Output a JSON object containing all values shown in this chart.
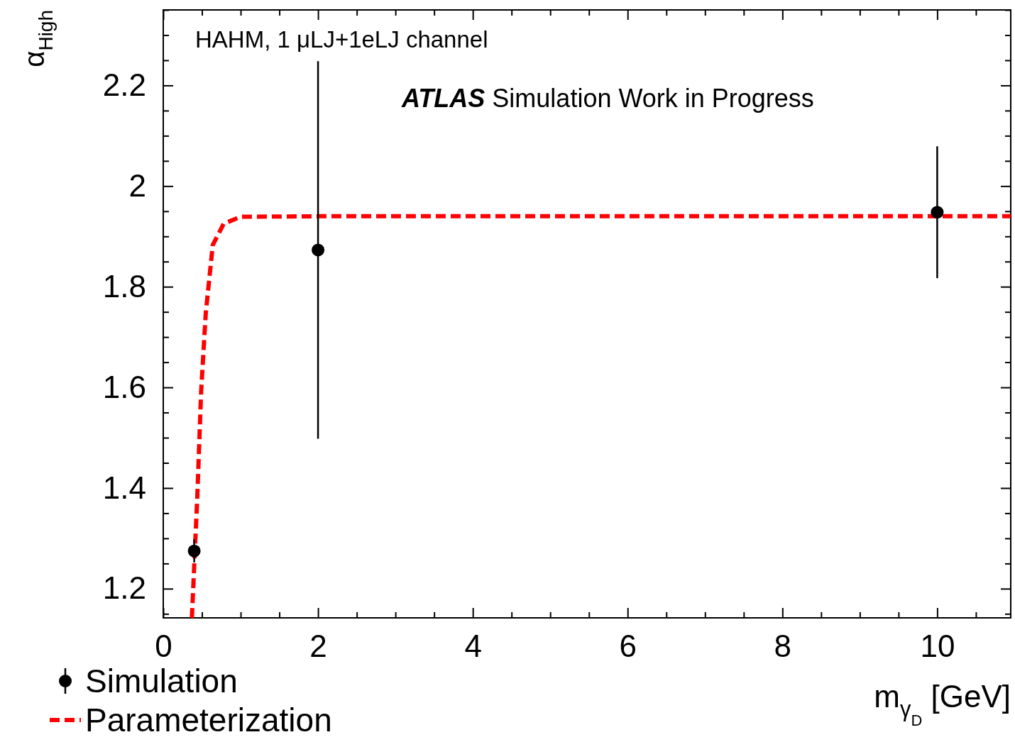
{
  "chart_data": {
    "type": "scatter",
    "xlabel": "m$_{γ}$$_{D}$ [GeV]",
    "ylabel": "α$_{High}$",
    "annotations": [
      "HAHM, 1 μLJ+1eLJ channel",
      "ATLAS",
      "Simulation Work in Progress"
    ],
    "xlim": [
      0,
      10.95
    ],
    "ylim": [
      1.142,
      2.35
    ],
    "xticks": [
      0,
      {
        "value": 0.5,
        "label": null
      },
      {
        "value": 1,
        "label": null
      },
      {
        "value": 1.5,
        "label": null
      },
      2,
      {
        "value": 2.5,
        "label": null
      },
      {
        "value": 3,
        "label": null
      },
      {
        "value": 3.5,
        "label": null
      },
      4,
      {
        "value": 4.5,
        "label": null
      },
      {
        "value": 5,
        "label": null
      },
      {
        "value": 5.5,
        "label": null
      },
      6,
      {
        "value": 6.5,
        "label": null
      },
      {
        "value": 7,
        "label": null
      },
      {
        "value": 7.5,
        "label": null
      },
      8,
      {
        "value": 8.5,
        "label": null
      },
      {
        "value": 9,
        "label": null
      },
      {
        "value": 9.5,
        "label": null
      },
      10,
      {
        "value": 10.5,
        "label": null
      }
    ],
    "yticks": [
      {
        "value": 1.15,
        "label": null
      },
      1.2,
      {
        "value": 1.25,
        "label": null
      },
      {
        "value": 1.3,
        "label": null
      },
      {
        "value": 1.35,
        "label": null
      },
      1.4,
      {
        "value": 1.45,
        "label": null
      },
      {
        "value": 1.5,
        "label": null
      },
      {
        "value": 1.55,
        "label": null
      },
      1.6,
      {
        "value": 1.65,
        "label": null
      },
      {
        "value": 1.7,
        "label": null
      },
      {
        "value": 1.75,
        "label": null
      },
      1.8,
      {
        "value": 1.85,
        "label": null
      },
      {
        "value": 1.9,
        "label": null
      },
      {
        "value": 1.95,
        "label": null
      },
      2,
      {
        "value": 2.05,
        "label": null
      },
      {
        "value": 2.1,
        "label": null
      },
      {
        "value": 2.15,
        "label": null
      },
      2.2,
      {
        "value": 2.25,
        "label": null
      },
      {
        "value": 2.3,
        "label": null
      },
      {
        "value": 2.35,
        "label": null
      }
    ],
    "grid": false,
    "legend": "bottom left",
    "series": [
      {
        "name": "Parameterization",
        "type": "line",
        "color": "#ff0000",
        "line_style": "dashed",
        "marker": "none",
        "x": [
          0.37,
          0.44,
          0.49,
          0.55,
          0.64,
          0.78,
          1.0,
          2,
          4,
          6,
          8,
          10.95
        ],
        "values": [
          1.142,
          1.383,
          1.594,
          1.749,
          1.883,
          1.925,
          1.939,
          1.94,
          1.94,
          1.94,
          1.94,
          1.94
        ]
      },
      {
        "name": "Simulation",
        "color": "#000000",
        "marker": "circle",
        "x": [
          0.4,
          2,
          10
        ],
        "values": [
          1.275,
          1.873,
          1.948
        ],
        "errors": [
          0.023,
          0.375,
          0.131
        ]
      }
    ]
  }
}
